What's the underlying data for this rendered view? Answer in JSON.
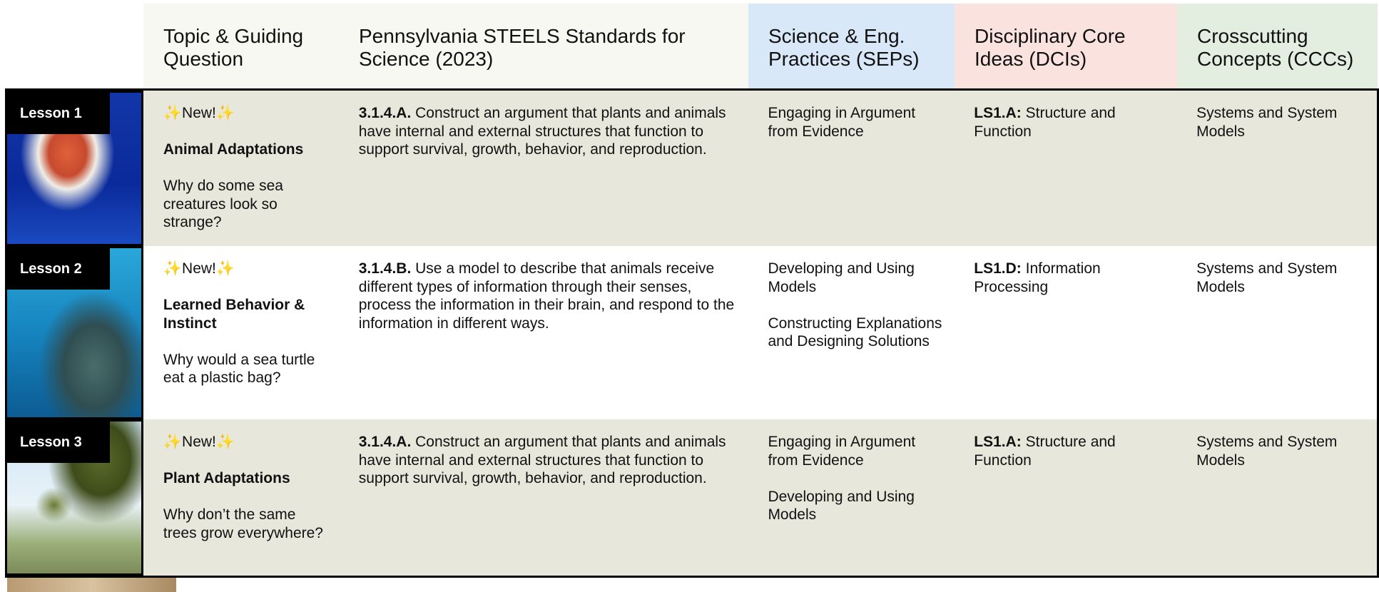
{
  "header": {
    "columns": [
      "Topic & Guiding Question",
      "Pennsylvania STEELS Standards for Science (2023)",
      "Science & Eng. Practices (SEPs)",
      "Disciplinary Core Ideas (DCIs)",
      "Crosscutting Concepts (CCCs)"
    ]
  },
  "rows": [
    {
      "lesson": "Lesson 1",
      "badge": "✨New!✨",
      "topic": "Animal Adaptations",
      "question": "Why do some sea creatures look so strange?",
      "standard_code": "3.1.4.A.",
      "standard_text": "Construct an argument that plants and animals have internal and external structures that function to support survival, growth, behavior, and reproduction.",
      "seps": [
        "Engaging in Argument from Evidence"
      ],
      "dci_code": "LS1.A:",
      "dci_text": "Structure and Function",
      "ccc": "Systems and System Models"
    },
    {
      "lesson": "Lesson 2",
      "badge": "✨New!✨",
      "topic": "Learned Behavior & Instinct",
      "question": "Why would a sea turtle eat a plastic bag?",
      "standard_code": "3.1.4.B.",
      "standard_text": "Use a model to describe that animals receive different types of information through their senses, process the information in their brain, and respond to the information in different ways.",
      "seps": [
        "Developing and Using Models",
        "Constructing Explanations and Designing Solutions"
      ],
      "dci_code": "LS1.D:",
      "dci_text": "Information Processing",
      "ccc": "Systems and System Models"
    },
    {
      "lesson": "Lesson 3",
      "badge": "✨New!✨",
      "topic": "Plant Adaptations",
      "question": "Why don’t the same trees grow everywhere?",
      "standard_code": "3.1.4.A.",
      "standard_text": "Construct an argument that plants and animals have internal and external structures that function to support survival, growth, behavior, and reproduction.",
      "seps": [
        "Engaging in Argument from Evidence",
        "Developing and Using Models"
      ],
      "dci_code": "LS1.A:",
      "dci_text": "Structure and Function",
      "ccc": "Systems and System Models"
    }
  ]
}
